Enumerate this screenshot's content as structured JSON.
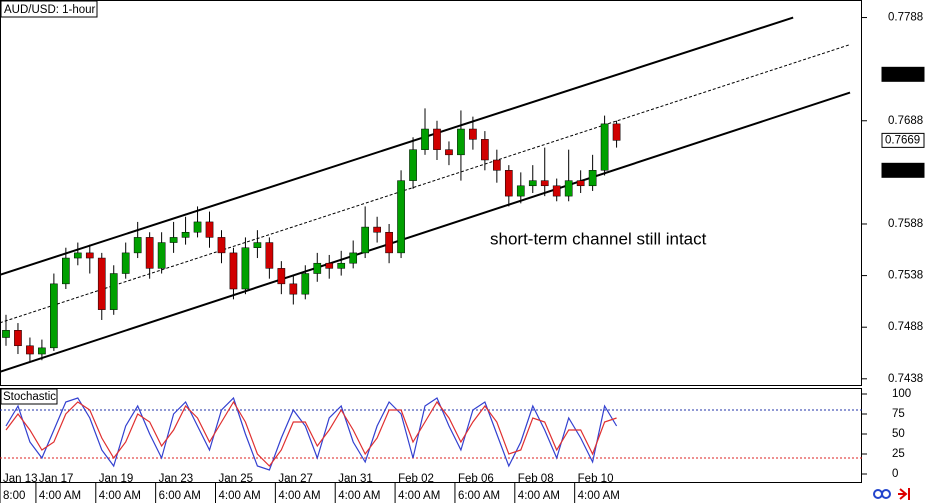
{
  "chart_data": [
    {
      "type": "candlestick",
      "title": "AUD/USD: 1-hour",
      "open": [
        0.7478,
        0.7485,
        0.747,
        0.7462,
        0.7468,
        0.753,
        0.7555,
        0.756,
        0.7555,
        0.7505,
        0.754,
        0.756,
        0.7575,
        0.7545,
        0.757,
        0.7575,
        0.758,
        0.759,
        0.7575,
        0.756,
        0.7525,
        0.7565,
        0.757,
        0.7545,
        0.753,
        0.752,
        0.754,
        0.755,
        0.7545,
        0.755,
        0.756,
        0.7585,
        0.758,
        0.756,
        0.763,
        0.766,
        0.768,
        0.766,
        0.7655,
        0.768,
        0.767,
        0.765,
        0.764,
        0.7615,
        0.7625,
        0.763,
        0.7625,
        0.7615,
        0.763,
        0.7625,
        0.764,
        0.7685
      ],
      "high": [
        0.75,
        0.7492,
        0.7478,
        0.7476,
        0.754,
        0.7565,
        0.757,
        0.7568,
        0.756,
        0.7548,
        0.757,
        0.759,
        0.758,
        0.758,
        0.759,
        0.7595,
        0.7605,
        0.76,
        0.7582,
        0.7565,
        0.7575,
        0.7582,
        0.7575,
        0.7552,
        0.7538,
        0.7548,
        0.756,
        0.7558,
        0.7562,
        0.7572,
        0.7605,
        0.7595,
        0.7588,
        0.764,
        0.7672,
        0.77,
        0.7688,
        0.7668,
        0.7698,
        0.7692,
        0.7678,
        0.766,
        0.7645,
        0.7638,
        0.7645,
        0.7662,
        0.7632,
        0.766,
        0.764,
        0.7655,
        0.7693,
        0.7688
      ],
      "low": [
        0.747,
        0.7462,
        0.7455,
        0.7456,
        0.7465,
        0.7525,
        0.7548,
        0.754,
        0.7495,
        0.75,
        0.7535,
        0.7555,
        0.7535,
        0.754,
        0.756,
        0.7568,
        0.7575,
        0.7565,
        0.755,
        0.7515,
        0.752,
        0.7555,
        0.7535,
        0.752,
        0.751,
        0.7515,
        0.7532,
        0.7535,
        0.7538,
        0.7545,
        0.7555,
        0.757,
        0.755,
        0.7555,
        0.7622,
        0.7655,
        0.765,
        0.7645,
        0.763,
        0.766,
        0.764,
        0.7628,
        0.7605,
        0.7608,
        0.7618,
        0.7615,
        0.761,
        0.761,
        0.7618,
        0.762,
        0.7635,
        0.7662
      ],
      "close": [
        0.7485,
        0.747,
        0.7462,
        0.7468,
        0.753,
        0.7555,
        0.756,
        0.7555,
        0.7505,
        0.754,
        0.756,
        0.7575,
        0.7545,
        0.757,
        0.7575,
        0.758,
        0.759,
        0.7575,
        0.756,
        0.7525,
        0.7565,
        0.757,
        0.7545,
        0.753,
        0.752,
        0.754,
        0.755,
        0.7545,
        0.755,
        0.756,
        0.7585,
        0.758,
        0.756,
        0.763,
        0.766,
        0.768,
        0.766,
        0.7655,
        0.768,
        0.767,
        0.765,
        0.764,
        0.7615,
        0.7625,
        0.763,
        0.7625,
        0.7615,
        0.763,
        0.7625,
        0.764,
        0.7685,
        0.7669
      ],
      "up_color": "#00a000",
      "down_color": "#d00000",
      "xlim": [
        0,
        72
      ],
      "xticks": [
        {
          "value": 0,
          "label": "Jan 13",
          "sublabel": "8:00"
        },
        {
          "value": 3,
          "label": "Jan 17",
          "sublabel": "4:00 AM"
        },
        {
          "value": 8,
          "label": "Jan 19",
          "sublabel": "4:00 AM"
        },
        {
          "value": 13,
          "label": "Jan 23",
          "sublabel": "6:00 AM"
        },
        {
          "value": 18,
          "label": "Jan 25",
          "sublabel": "4:00 AM"
        },
        {
          "value": 23,
          "label": "Jan 27",
          "sublabel": "4:00 AM"
        },
        {
          "value": 28,
          "label": "Jan 31",
          "sublabel": "4:00 AM"
        },
        {
          "value": 33,
          "label": "Feb 02",
          "sublabel": "4:00 AM"
        },
        {
          "value": 38,
          "label": "Feb 06",
          "sublabel": "6:00 AM"
        },
        {
          "value": 43,
          "label": "Feb 08",
          "sublabel": "4:00 AM"
        },
        {
          "value": 48,
          "label": "Feb 10",
          "sublabel": "4:00 AM"
        }
      ],
      "ylim": [
        0.7432,
        0.7805
      ],
      "yticks": [
        0.7438,
        0.7488,
        0.7538,
        0.7588,
        0.7688,
        0.7788
      ],
      "price_markers": [
        0.7733,
        0.7669,
        0.764
      ],
      "price_marker_styles": [
        "dark",
        "light",
        "dark"
      ],
      "trendlines": [
        {
          "x": [
            0,
            66.25
          ],
          "y": [
            0.75388,
            0.7788
          ],
          "style": "solid"
        },
        {
          "x": [
            0,
            71
          ],
          "y": [
            0.74923,
            0.77618
          ],
          "style": "dashed"
        },
        {
          "x": [
            0,
            71
          ],
          "y": [
            0.74448,
            0.77153
          ],
          "style": "solid"
        }
      ],
      "annotation": "short-term channel still intact"
    },
    {
      "type": "line",
      "title": "Stochastic",
      "series": [
        {
          "color": "#3340d0",
          "values": [
            60,
            85,
            40,
            20,
            55,
            90,
            95,
            70,
            30,
            10,
            60,
            85,
            50,
            20,
            75,
            90,
            60,
            30,
            80,
            95,
            50,
            10,
            5,
            45,
            80,
            60,
            20,
            70,
            85,
            40,
            15,
            60,
            90,
            75,
            20,
            85,
            95,
            60,
            30,
            80,
            90,
            50,
            10,
            40,
            85,
            55,
            20,
            70,
            45,
            15,
            85,
            60
          ]
        },
        {
          "color": "#e03030",
          "values": [
            55,
            75,
            55,
            30,
            40,
            75,
            90,
            80,
            45,
            20,
            40,
            75,
            65,
            35,
            55,
            85,
            70,
            40,
            65,
            90,
            65,
            25,
            10,
            30,
            65,
            65,
            35,
            55,
            80,
            55,
            25,
            45,
            80,
            80,
            40,
            65,
            90,
            70,
            40,
            65,
            85,
            65,
            25,
            30,
            70,
            65,
            30,
            55,
            55,
            25,
            65,
            70
          ]
        }
      ],
      "levels": [
        80,
        20
      ],
      "level_colors": [
        "#2233aa",
        "#dd2222"
      ],
      "ylim": [
        -10,
        107.5
      ],
      "yticks": [
        0,
        25,
        50,
        75,
        100
      ]
    }
  ]
}
